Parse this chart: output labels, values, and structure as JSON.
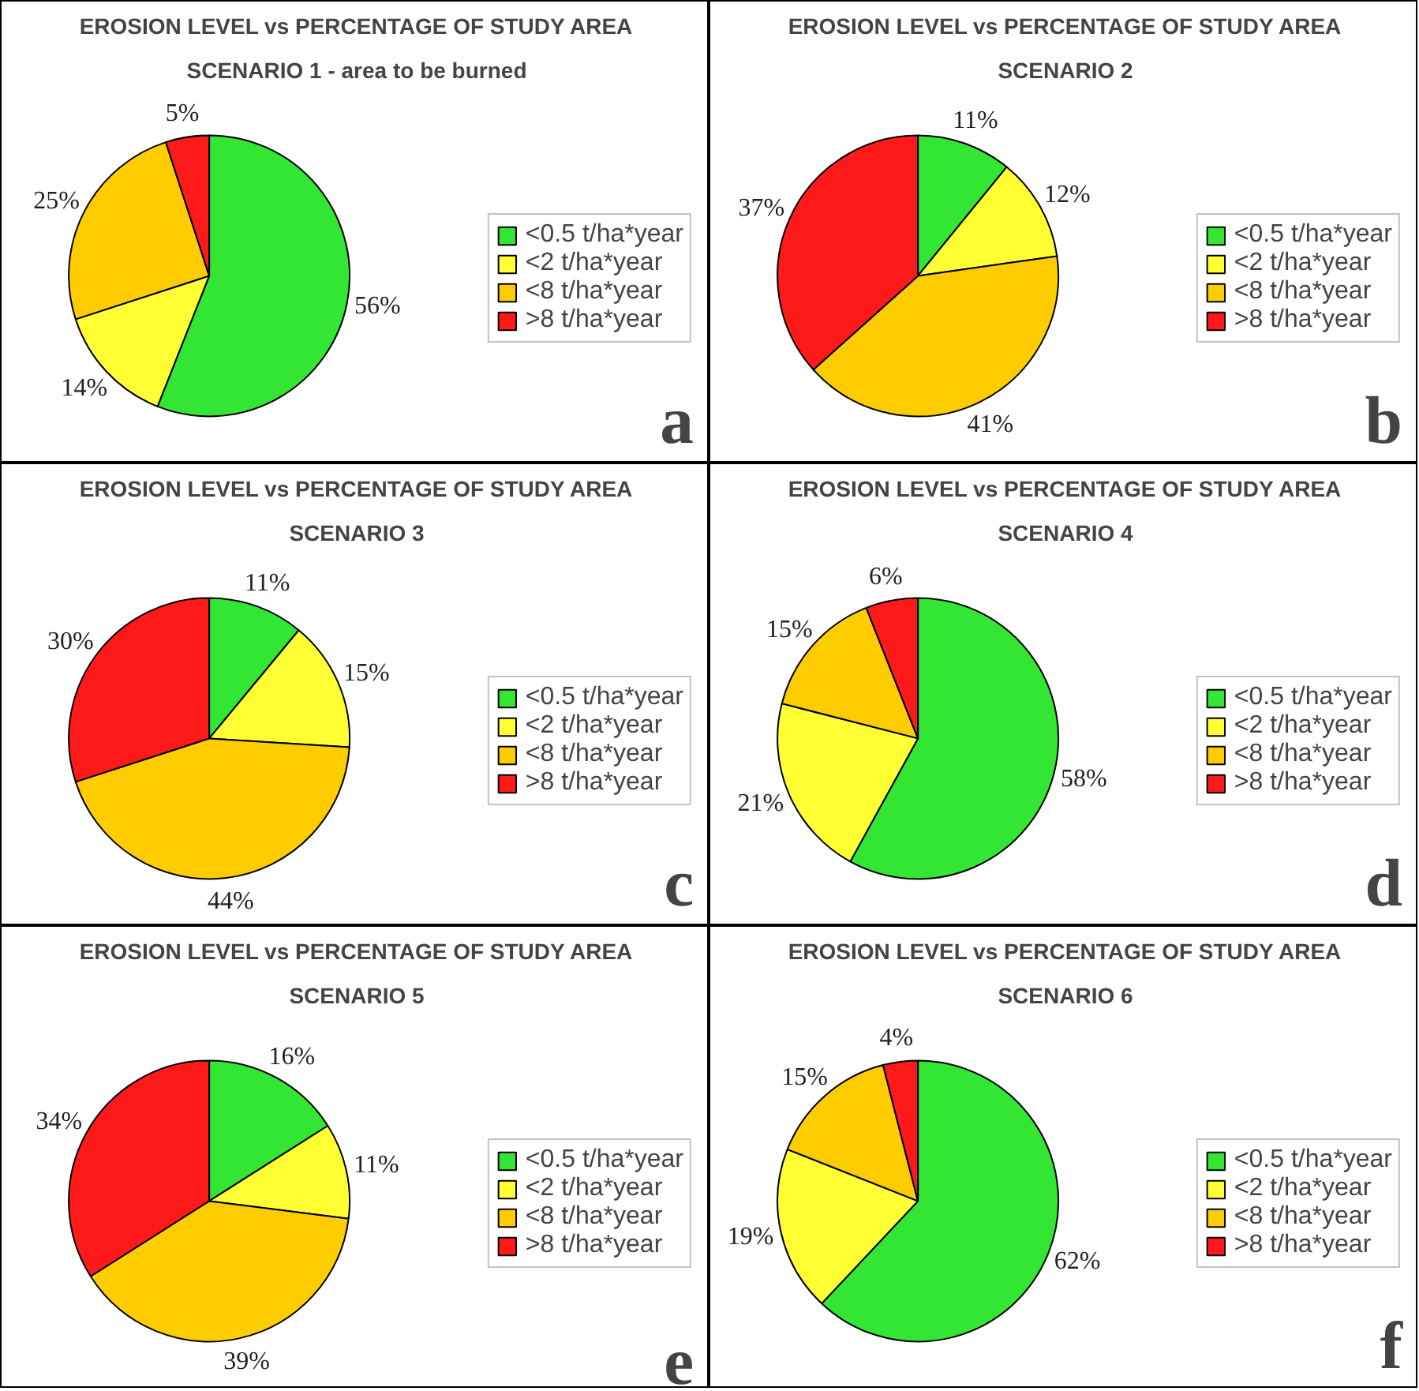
{
  "chart_data": [
    {
      "type": "pie",
      "title": "EROSION LEVEL vs PERCENTAGE OF STUDY AREA",
      "subtitle": "SCENARIO 1 - area to be burned",
      "categories": [
        "<0.5 t/ha*year",
        "<2 t/ha*year",
        "<8 t/ha*year",
        ">8 t/ha*year"
      ],
      "values": [
        56,
        14,
        25,
        5
      ],
      "value_labels": [
        "56%",
        "14%",
        "25%",
        "5%"
      ],
      "colors": [
        "#33e633",
        "#ffff33",
        "#ffcc00",
        "#ff1a1a"
      ],
      "legend": "right",
      "annotations": [
        "a"
      ]
    },
    {
      "type": "pie",
      "title": "EROSION LEVEL vs PERCENTAGE OF STUDY AREA",
      "subtitle": "SCENARIO 2",
      "categories": [
        "<0.5 t/ha*year",
        "<2 t/ha*year",
        "<8 t/ha*year",
        ">8 t/ha*year"
      ],
      "values": [
        11,
        12,
        41,
        37
      ],
      "value_labels": [
        "11%",
        "12%",
        "41%",
        "37%"
      ],
      "colors": [
        "#33e633",
        "#ffff33",
        "#ffcc00",
        "#ff1a1a"
      ],
      "legend": "right",
      "annotations": [
        "b"
      ]
    },
    {
      "type": "pie",
      "title": "EROSION LEVEL vs PERCENTAGE OF STUDY AREA",
      "subtitle": "SCENARIO 3",
      "categories": [
        "<0.5 t/ha*year",
        "<2 t/ha*year",
        "<8 t/ha*year",
        ">8 t/ha*year"
      ],
      "values": [
        11,
        15,
        44,
        30
      ],
      "value_labels": [
        "11%",
        "15%",
        "44%",
        "30%"
      ],
      "colors": [
        "#33e633",
        "#ffff33",
        "#ffcc00",
        "#ff1a1a"
      ],
      "legend": "right",
      "annotations": [
        "c"
      ]
    },
    {
      "type": "pie",
      "title": "EROSION LEVEL vs PERCENTAGE OF STUDY AREA",
      "subtitle": "SCENARIO 4",
      "categories": [
        "<0.5 t/ha*year",
        "<2 t/ha*year",
        "<8 t/ha*year",
        ">8 t/ha*year"
      ],
      "values": [
        58,
        21,
        15,
        6
      ],
      "value_labels": [
        "58%",
        "21%",
        "15%",
        "6%"
      ],
      "colors": [
        "#33e633",
        "#ffff33",
        "#ffcc00",
        "#ff1a1a"
      ],
      "legend": "right",
      "annotations": [
        "d"
      ]
    },
    {
      "type": "pie",
      "title": "EROSION LEVEL vs PERCENTAGE OF STUDY AREA",
      "subtitle": "SCENARIO 5",
      "categories": [
        "<0.5 t/ha*year",
        "<2 t/ha*year",
        "<8 t/ha*year",
        ">8 t/ha*year"
      ],
      "values": [
        16,
        11,
        39,
        34
      ],
      "value_labels": [
        "16%",
        "11%",
        "39%",
        "34%"
      ],
      "colors": [
        "#33e633",
        "#ffff33",
        "#ffcc00",
        "#ff1a1a"
      ],
      "legend": "right",
      "annotations": [
        "e"
      ]
    },
    {
      "type": "pie",
      "title": "EROSION LEVEL vs PERCENTAGE OF STUDY AREA",
      "subtitle": "SCENARIO 6",
      "categories": [
        "<0.5 t/ha*year",
        "<2 t/ha*year",
        "<8 t/ha*year",
        ">8 t/ha*year"
      ],
      "values": [
        62,
        19,
        15,
        4
      ],
      "value_labels": [
        "62%",
        "19%",
        "15%",
        "4%"
      ],
      "colors": [
        "#33e633",
        "#ffff33",
        "#ffcc00",
        "#ff1a1a"
      ],
      "legend": "right",
      "annotations": [
        "f"
      ]
    }
  ]
}
